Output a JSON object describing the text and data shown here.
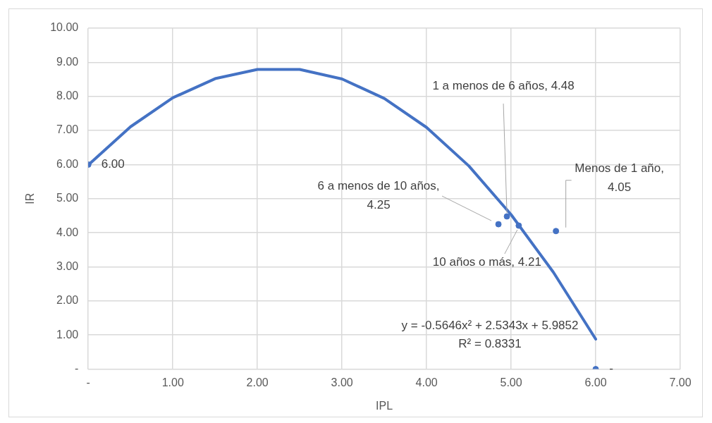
{
  "chart_data": {
    "type": "scatter",
    "xlabel": "IPL",
    "ylabel": "IR",
    "xlim": [
      0,
      7
    ],
    "xticks": [
      {
        "value": 0,
        "label": "-"
      },
      {
        "value": 1,
        "label": "1.00"
      },
      {
        "value": 2,
        "label": "2.00"
      },
      {
        "value": 3,
        "label": "3.00"
      },
      {
        "value": 4,
        "label": "4.00"
      },
      {
        "value": 5,
        "label": "5.00"
      },
      {
        "value": 6,
        "label": "6.00"
      },
      {
        "value": 7,
        "label": "7.00"
      }
    ],
    "ylim": [
      0,
      10
    ],
    "yticks": [
      {
        "value": 0,
        "label": "-"
      },
      {
        "value": 1,
        "label": "1.00"
      },
      {
        "value": 2,
        "label": "2.00"
      },
      {
        "value": 3,
        "label": "3.00"
      },
      {
        "value": 4,
        "label": "4.00"
      },
      {
        "value": 5,
        "label": "5.00"
      },
      {
        "value": 6,
        "label": "6.00"
      },
      {
        "value": 7,
        "label": "7.00"
      },
      {
        "value": 8,
        "label": "8.00"
      },
      {
        "value": 9,
        "label": "9.00"
      },
      {
        "value": 10,
        "label": "10.00"
      }
    ],
    "grid": true,
    "legend": false,
    "series": [
      {
        "type": "scatter",
        "marker": "circle",
        "color": "#4472c4",
        "x": [
          0,
          4.85,
          4.95,
          5.09,
          5.53,
          6.0
        ],
        "values": [
          6.0,
          4.25,
          4.48,
          4.21,
          4.05,
          0
        ],
        "value_labels": [
          "6.00",
          "6 a menos de 10 años, 4.25",
          "1 a menos de 6 años, 4.48",
          "10 años o más, 4.21",
          "Menos de 1 año, 4.05",
          "-"
        ]
      },
      {
        "type": "line",
        "marker": "none",
        "color": "#4472c4",
        "x": [
          0,
          0.5,
          1,
          1.5,
          2,
          2.5,
          3,
          3.5,
          4,
          4.5,
          5,
          5.5,
          6
        ],
        "values": [
          5.99,
          7.11,
          7.96,
          8.52,
          8.79,
          8.79,
          8.51,
          7.94,
          7.09,
          5.96,
          4.53,
          2.84,
          0.88
        ]
      }
    ],
    "annotations": [
      "y = -0.5646x² + 2.5343x + 5.9852",
      "R² = 0.8331"
    ]
  }
}
